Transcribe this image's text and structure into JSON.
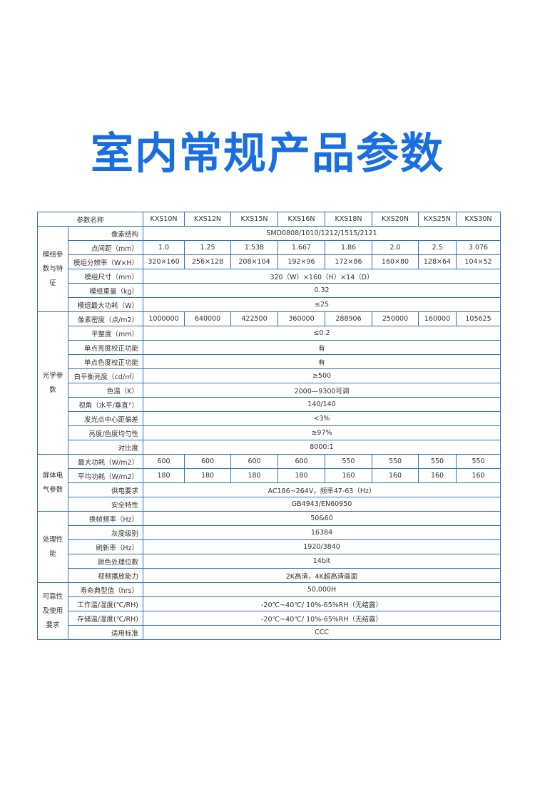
{
  "title": "室内常规产品参数",
  "colors": {
    "title": "#1a6fe0",
    "border": "#2a72c8"
  },
  "table": {
    "header_label": "参数名称",
    "models": [
      "KXS10N",
      "KXS12N",
      "KXS15N",
      "KXS16N",
      "KXS18N",
      "KXS20N",
      "KXS25N",
      "KXS30N"
    ],
    "groups": [
      {
        "name": "模组参数与特征",
        "rows": [
          {
            "label": "像素结构",
            "value": "SMD0808/1010/1212/1515/2121"
          },
          {
            "label": "点间距（mm）",
            "values": [
              "1.0",
              "1.25",
              "1.538",
              "1.667",
              "1.86",
              "2.0",
              "2.5",
              "3.076"
            ]
          },
          {
            "label": "模组分辨率（W×H）",
            "values": [
              "320×160",
              "256×128",
              "208×104",
              "192×96",
              "172×86",
              "160×80",
              "128×64",
              "104×52"
            ]
          },
          {
            "label": "模组尺寸（mm）",
            "value": "320（W）×160（H）×14（D）"
          },
          {
            "label": "模组重量（kg）",
            "value": "0.32"
          },
          {
            "label": "模组最大功耗（W）",
            "value": "≤25"
          }
        ]
      },
      {
        "name": "光学参数",
        "rows": [
          {
            "label": "像素密度（点/m2）",
            "values": [
              "1000000",
              "640000",
              "422500",
              "360000",
              "288906",
              "250000",
              "160000",
              "105625"
            ]
          },
          {
            "label": "平整度（mm）",
            "value": "≤0.2"
          },
          {
            "label": "单点亮度校正功能",
            "value": "有"
          },
          {
            "label": "单点色度校正功能",
            "value": "有"
          },
          {
            "label": "白平衡亮度（cd/㎡）",
            "value": "≥500"
          },
          {
            "label": "色温（K）",
            "value": "2000—9300可调"
          },
          {
            "label": "视角（水平/垂直°）",
            "value": "140/140"
          },
          {
            "label": "发光点中心距偏差",
            "value": "<3%"
          },
          {
            "label": "亮度/色度均匀性",
            "value": "≥97%"
          },
          {
            "label": "对比度",
            "value": "8000:1"
          }
        ]
      },
      {
        "name": "屏体电气参数",
        "rows": [
          {
            "label": "最大功耗（W/m2）",
            "values": [
              "600",
              "600",
              "600",
              "600",
              "550",
              "550",
              "550",
              "550"
            ]
          },
          {
            "label": "平均功耗（W/m2）",
            "values": [
              "180",
              "180",
              "180",
              "180",
              "160",
              "160",
              "160",
              "160"
            ]
          },
          {
            "label": "供电要求",
            "value": "AC186~264V，频率47-63（Hz）"
          },
          {
            "label": "安全特性",
            "value": "GB4943/EN60950"
          }
        ]
      },
      {
        "name": "处理性能",
        "rows": [
          {
            "label": "换帧频率（Hz）",
            "value": "50&60"
          },
          {
            "label": "灰度级别",
            "value": "16384"
          },
          {
            "label": "刷新率（Hz）",
            "value": "1920/3840"
          },
          {
            "label": "颜色处理位数",
            "value": "14bit"
          },
          {
            "label": "视频播放能力",
            "value": "2K高清，4K超高清画面"
          }
        ]
      },
      {
        "name": "可靠性及使用要求",
        "rows": [
          {
            "label": "寿命典型值（hrs）",
            "value": "50,000H"
          },
          {
            "label": "工作温/湿度(℃/RH)",
            "value": "-20℃~40℃/ 10%-65%RH（无结露）"
          },
          {
            "label": "存储温/湿度(℃/RH)",
            "value": "-20℃~40℃/ 10%-65%RH（无结露）"
          },
          {
            "label": "适用标准",
            "value": "CCC"
          }
        ]
      }
    ]
  }
}
